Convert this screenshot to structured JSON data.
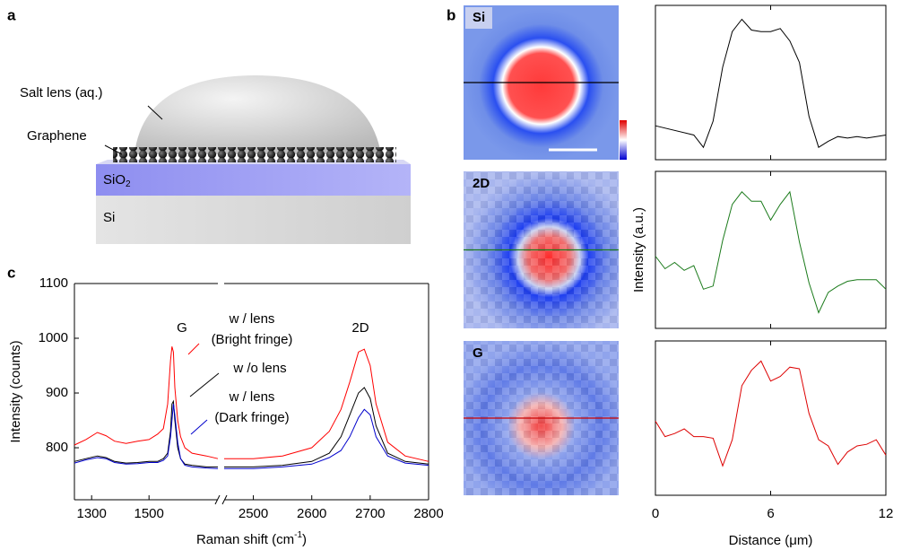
{
  "panels": {
    "a": "a",
    "b": "b",
    "c": "c"
  },
  "schematic": {
    "lens": "Salt lens (aq.)",
    "graphene": "Graphene",
    "oxide": [
      "SiO",
      "2"
    ],
    "substrate": "Si"
  },
  "maps": [
    {
      "label": "Si",
      "line_color": "#000000"
    },
    {
      "label": "2D",
      "line_color": "#1a7a1a"
    },
    {
      "label": "G",
      "line_color": "#cc0000"
    }
  ],
  "chart_data": [
    {
      "type": "line",
      "xlabel": [
        "Raman shift (cm",
        "-1",
        ")"
      ],
      "ylabel": "Intensity (counts)",
      "xlim": [
        1240,
        2800
      ],
      "xbreak": [
        1740,
        2450
      ],
      "ylim": [
        705,
        1100
      ],
      "xticks": [
        1300,
        1500,
        2500,
        2600,
        2700,
        2800
      ],
      "yticks": [
        800,
        900,
        1000,
        1100
      ],
      "x": [
        1240,
        1280,
        1320,
        1350,
        1380,
        1420,
        1460,
        1500,
        1530,
        1550,
        1565,
        1575,
        1580,
        1585,
        1590,
        1600,
        1610,
        1625,
        1650,
        1700,
        1740,
        2450,
        2500,
        2550,
        2600,
        2630,
        2650,
        2665,
        2680,
        2690,
        2700,
        2710,
        2730,
        2760,
        2800
      ],
      "series": [
        {
          "name": "w / lens",
          "name_line2": "(Bright fringe)",
          "color": "#ff0000",
          "values": [
            805,
            815,
            828,
            822,
            812,
            808,
            812,
            815,
            825,
            835,
            880,
            960,
            985,
            975,
            910,
            850,
            820,
            800,
            790,
            785,
            780,
            780,
            780,
            785,
            800,
            830,
            870,
            920,
            975,
            980,
            950,
            880,
            810,
            785,
            775
          ]
        },
        {
          "name": "w /o lens",
          "color": "#000000",
          "values": [
            775,
            780,
            785,
            782,
            775,
            772,
            773,
            775,
            775,
            780,
            790,
            830,
            880,
            885,
            850,
            800,
            780,
            770,
            768,
            765,
            765,
            765,
            765,
            768,
            775,
            790,
            820,
            860,
            900,
            910,
            890,
            840,
            790,
            775,
            770
          ]
        },
        {
          "name": "w / lens",
          "name_line2": "(Dark fringe)",
          "color": "#0000cc",
          "values": [
            772,
            778,
            782,
            780,
            773,
            770,
            771,
            773,
            773,
            777,
            785,
            820,
            850,
            880,
            860,
            810,
            780,
            768,
            765,
            763,
            762,
            762,
            762,
            765,
            770,
            782,
            795,
            820,
            855,
            870,
            860,
            820,
            785,
            772,
            768
          ]
        }
      ],
      "annotations": [
        "G",
        "2D"
      ]
    },
    {
      "type": "line",
      "xlim": [
        0,
        12
      ],
      "ylim": [
        0,
        1
      ],
      "x": [
        0,
        2,
        2.5,
        3,
        3.5,
        4,
        4.5,
        5,
        5.5,
        6,
        6.5,
        7,
        7.5,
        8,
        8.5,
        9,
        9.5,
        10,
        10.5,
        11,
        11.5,
        12
      ],
      "series": [
        {
          "color": "#000000",
          "values": [
            0.22,
            0.16,
            0.08,
            0.25,
            0.6,
            0.83,
            0.91,
            0.84,
            0.83,
            0.83,
            0.85,
            0.77,
            0.63,
            0.28,
            0.08,
            0.12,
            0.15,
            0.14,
            0.15,
            0.14,
            0.15,
            0.16
          ]
        }
      ]
    },
    {
      "type": "line",
      "xlim": [
        0,
        12
      ],
      "ylim": [
        0,
        1
      ],
      "ylabel": "Intensity (a.u.)",
      "x": [
        0,
        0.5,
        1,
        1.5,
        2,
        2.5,
        3,
        3.5,
        4,
        4.5,
        5,
        5.5,
        6,
        6.5,
        7,
        7.5,
        8,
        8.5,
        9,
        9.5,
        10,
        10.5,
        11,
        11.5,
        12
      ],
      "series": [
        {
          "color": "#1a7a1a",
          "values": [
            0.46,
            0.38,
            0.42,
            0.37,
            0.4,
            0.25,
            0.27,
            0.56,
            0.79,
            0.87,
            0.81,
            0.81,
            0.69,
            0.79,
            0.87,
            0.55,
            0.29,
            0.1,
            0.23,
            0.27,
            0.3,
            0.31,
            0.31,
            0.31,
            0.25
          ]
        }
      ]
    },
    {
      "type": "line",
      "xlim": [
        0,
        12
      ],
      "ylim": [
        0,
        1
      ],
      "xlabel": "Distance (μm)",
      "xticks": [
        0,
        6,
        12
      ],
      "x": [
        0,
        0.5,
        1,
        1.5,
        2,
        2.5,
        3,
        3.5,
        4,
        4.5,
        5,
        5.5,
        6,
        6.5,
        7,
        7.5,
        8,
        8.5,
        9,
        9.5,
        10,
        10.5,
        11,
        11.5,
        12
      ],
      "series": [
        {
          "color": "#dd0000",
          "values": [
            0.48,
            0.38,
            0.4,
            0.43,
            0.38,
            0.38,
            0.37,
            0.19,
            0.36,
            0.71,
            0.81,
            0.87,
            0.74,
            0.77,
            0.83,
            0.82,
            0.53,
            0.36,
            0.32,
            0.2,
            0.28,
            0.32,
            0.33,
            0.36,
            0.26
          ]
        }
      ]
    }
  ]
}
